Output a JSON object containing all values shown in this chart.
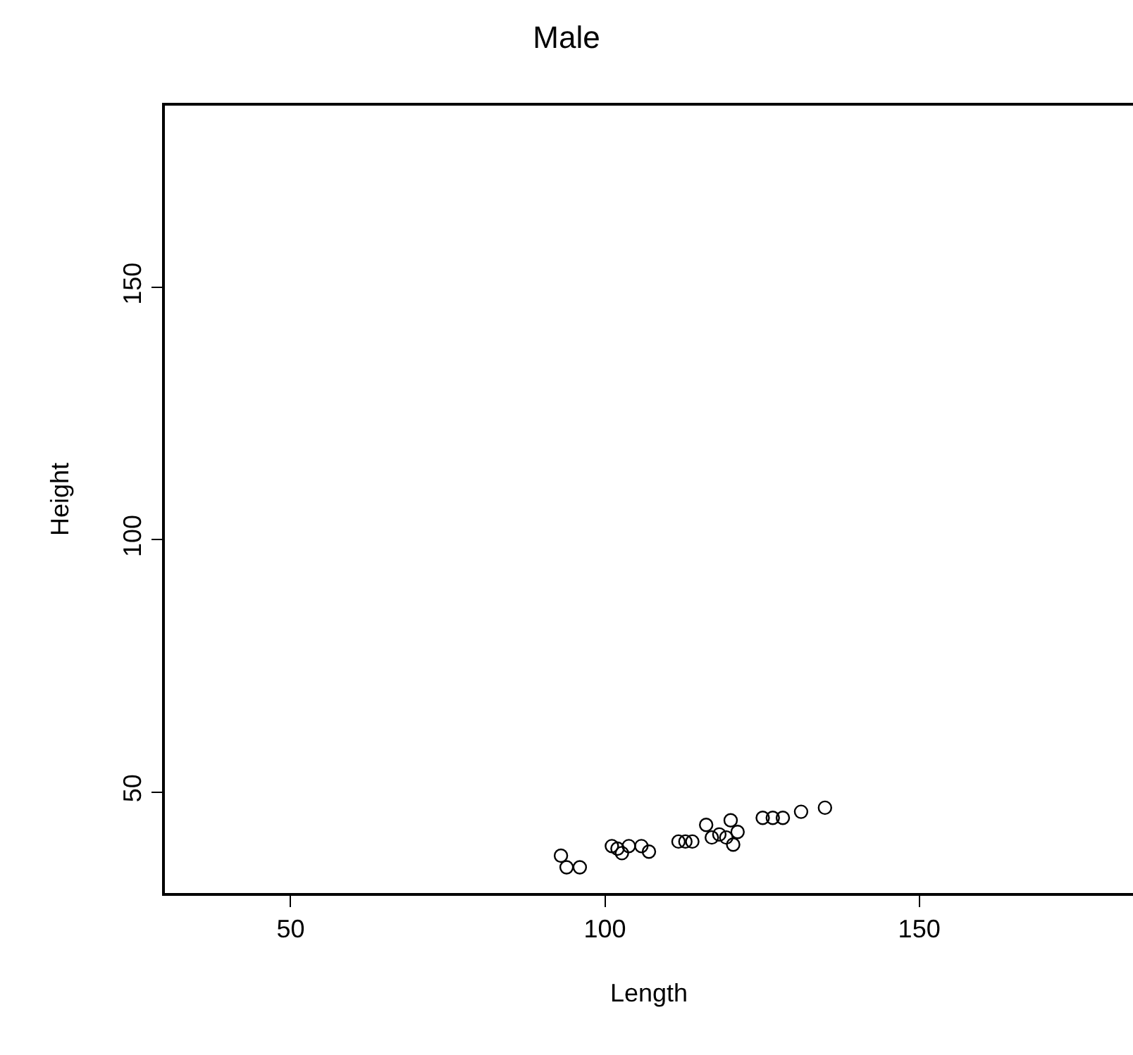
{
  "chart_data": {
    "type": "scatter",
    "title": "Male",
    "xlabel": "Length",
    "ylabel": "Height",
    "x": [
      93.0,
      93.9,
      96.0,
      101.1,
      102.0,
      102.7,
      103.8,
      105.8,
      107.0,
      111.7,
      112.8,
      113.9,
      116.1,
      117.0,
      118.2,
      119.3,
      120.0,
      120.4,
      121.1,
      125.1,
      126.7,
      128.3,
      131.2,
      135.0
    ],
    "series": [
      {
        "color": "#000000",
        "values": [
          37.4,
          35.1,
          35.1,
          39.3,
          38.8,
          37.9,
          39.3,
          39.3,
          38.2,
          40.2,
          40.2,
          40.2,
          43.5,
          41.0,
          41.6,
          41.0,
          44.4,
          39.6,
          42.1,
          44.9,
          44.9,
          44.9,
          46.1,
          46.9
        ]
      }
    ],
    "xlim": [
      30,
      184
    ],
    "ylim": [
      30,
      186
    ],
    "xticks": [
      50,
      100,
      150
    ],
    "yticks": [
      50,
      100,
      150
    ],
    "grid": false,
    "marker": "circle"
  }
}
